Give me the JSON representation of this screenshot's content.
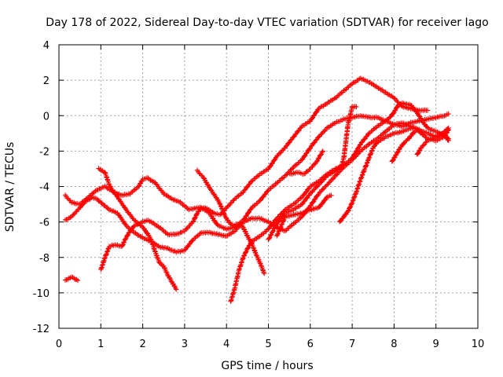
{
  "chart_data": {
    "type": "scatter",
    "title": "Day 178 of 2022, Sidereal Day-to-day VTEC variation (SDTVAR) for receiver Iago",
    "xlabel": "GPS time / hours",
    "ylabel": "SDTVAR / TECUs",
    "xlim": [
      0,
      10
    ],
    "ylim": [
      -12,
      4
    ],
    "x_ticks": [
      0,
      1,
      2,
      3,
      4,
      5,
      6,
      7,
      8,
      9,
      10
    ],
    "y_ticks": [
      -12,
      -10,
      -8,
      -6,
      -4,
      -2,
      0,
      2,
      4
    ],
    "grid": true,
    "marker": "+",
    "marker_color": "#ff0000",
    "series": [
      {
        "name": "s1",
        "points": [
          [
            0.15,
            -4.5
          ],
          [
            0.3,
            -4.9
          ],
          [
            0.5,
            -5.0
          ],
          [
            0.7,
            -4.6
          ],
          [
            0.9,
            -4.2
          ],
          [
            1.1,
            -4.0
          ],
          [
            1.3,
            -4.3
          ],
          [
            1.5,
            -4.5
          ],
          [
            1.7,
            -4.4
          ],
          [
            1.9,
            -4.0
          ],
          [
            2.0,
            -3.6
          ],
          [
            2.1,
            -3.5
          ],
          [
            2.3,
            -3.8
          ],
          [
            2.5,
            -4.4
          ],
          [
            2.7,
            -4.7
          ],
          [
            2.9,
            -4.9
          ],
          [
            3.1,
            -5.3
          ],
          [
            3.3,
            -5.2
          ],
          [
            3.5,
            -5.2
          ],
          [
            3.7,
            -5.5
          ],
          [
            3.85,
            -5.6
          ],
          [
            4.0,
            -5.2
          ],
          [
            4.2,
            -4.7
          ],
          [
            4.4,
            -4.3
          ],
          [
            4.6,
            -3.7
          ],
          [
            4.8,
            -3.3
          ],
          [
            5.0,
            -3.0
          ],
          [
            5.2,
            -2.3
          ],
          [
            5.4,
            -1.8
          ],
          [
            5.6,
            -1.2
          ],
          [
            5.8,
            -0.6
          ],
          [
            6.0,
            -0.3
          ],
          [
            6.2,
            0.4
          ],
          [
            6.4,
            0.7
          ],
          [
            6.6,
            1.0
          ],
          [
            6.8,
            1.4
          ],
          [
            7.0,
            1.8
          ],
          [
            7.2,
            2.1
          ],
          [
            7.4,
            1.9
          ],
          [
            7.6,
            1.6
          ],
          [
            7.8,
            1.3
          ],
          [
            8.0,
            1.0
          ],
          [
            8.2,
            0.5
          ],
          [
            8.4,
            0.4
          ],
          [
            8.6,
            0.3
          ],
          [
            8.8,
            0.3
          ]
        ]
      },
      {
        "name": "s2",
        "points": [
          [
            0.15,
            -5.9
          ],
          [
            0.3,
            -5.7
          ],
          [
            0.5,
            -5.2
          ],
          [
            0.6,
            -4.9
          ],
          [
            0.8,
            -4.6
          ],
          [
            0.9,
            -4.7
          ],
          [
            1.0,
            -4.9
          ],
          [
            1.1,
            -5.1
          ],
          [
            1.2,
            -5.3
          ],
          [
            1.4,
            -5.5
          ],
          [
            1.6,
            -6.2
          ],
          [
            1.8,
            -6.6
          ],
          [
            2.0,
            -6.9
          ],
          [
            2.2,
            -7.1
          ],
          [
            2.4,
            -7.4
          ],
          [
            2.6,
            -7.5
          ],
          [
            2.8,
            -7.7
          ],
          [
            3.0,
            -7.6
          ],
          [
            3.2,
            -7.0
          ],
          [
            3.4,
            -6.6
          ],
          [
            3.6,
            -6.6
          ],
          [
            3.8,
            -6.7
          ],
          [
            4.0,
            -6.8
          ],
          [
            4.2,
            -6.5
          ],
          [
            4.4,
            -6.0
          ],
          [
            4.6,
            -5.8
          ],
          [
            4.8,
            -5.8
          ],
          [
            5.0,
            -6.0
          ],
          [
            5.2,
            -6.3
          ],
          [
            5.4,
            -6.5
          ],
          [
            5.6,
            -6.1
          ],
          [
            5.8,
            -5.7
          ],
          [
            6.0,
            -5.1
          ],
          [
            6.2,
            -4.4
          ],
          [
            6.4,
            -3.9
          ],
          [
            6.6,
            -3.4
          ],
          [
            6.8,
            -2.9
          ],
          [
            7.0,
            -2.5
          ],
          [
            7.2,
            -2.0
          ],
          [
            7.4,
            -1.6
          ],
          [
            7.6,
            -1.3
          ],
          [
            7.8,
            -0.9
          ],
          [
            8.0,
            -0.5
          ],
          [
            8.2,
            -0.4
          ],
          [
            8.4,
            -0.6
          ],
          [
            8.6,
            -0.8
          ],
          [
            8.8,
            -1.0
          ],
          [
            9.0,
            -1.2
          ],
          [
            9.2,
            -1.1
          ],
          [
            9.3,
            -1.3
          ]
        ]
      },
      {
        "name": "s3",
        "points": [
          [
            0.95,
            -3.0
          ],
          [
            1.1,
            -3.2
          ],
          [
            1.2,
            -3.9
          ],
          [
            1.3,
            -4.3
          ],
          [
            1.4,
            -4.6
          ],
          [
            1.6,
            -5.3
          ],
          [
            1.8,
            -5.9
          ],
          [
            2.0,
            -6.3
          ],
          [
            2.1,
            -6.6
          ],
          [
            2.2,
            -7.0
          ],
          [
            2.3,
            -7.7
          ],
          [
            2.4,
            -8.3
          ],
          [
            2.5,
            -8.5
          ],
          [
            2.6,
            -9.0
          ],
          [
            2.7,
            -9.4
          ],
          [
            2.8,
            -9.8
          ]
        ]
      },
      {
        "name": "s4",
        "points": [
          [
            0.15,
            -9.3
          ],
          [
            0.3,
            -9.1
          ],
          [
            0.45,
            -9.3
          ]
        ]
      },
      {
        "name": "s5",
        "points": [
          [
            1.0,
            -8.7
          ],
          [
            1.1,
            -8.0
          ],
          [
            1.2,
            -7.4
          ],
          [
            1.3,
            -7.3
          ],
          [
            1.4,
            -7.3
          ],
          [
            1.5,
            -7.4
          ],
          [
            1.6,
            -6.9
          ],
          [
            1.7,
            -6.5
          ],
          [
            1.8,
            -6.2
          ],
          [
            1.9,
            -6.1
          ],
          [
            2.0,
            -6.0
          ],
          [
            2.1,
            -5.9
          ],
          [
            2.2,
            -6.0
          ],
          [
            2.4,
            -6.3
          ],
          [
            2.6,
            -6.7
          ],
          [
            2.8,
            -6.7
          ],
          [
            3.0,
            -6.5
          ],
          [
            3.2,
            -6.0
          ],
          [
            3.3,
            -5.5
          ],
          [
            3.4,
            -5.2
          ],
          [
            3.6,
            -5.5
          ],
          [
            3.7,
            -5.9
          ],
          [
            3.8,
            -6.2
          ],
          [
            4.0,
            -6.4
          ],
          [
            4.2,
            -6.3
          ],
          [
            4.4,
            -5.9
          ],
          [
            4.6,
            -5.2
          ],
          [
            4.8,
            -4.8
          ],
          [
            5.0,
            -4.2
          ],
          [
            5.2,
            -3.8
          ],
          [
            5.4,
            -3.4
          ],
          [
            5.6,
            -2.9
          ],
          [
            5.8,
            -2.5
          ],
          [
            6.0,
            -1.8
          ],
          [
            6.2,
            -1.2
          ],
          [
            6.4,
            -0.7
          ],
          [
            6.6,
            -0.4
          ],
          [
            6.8,
            -0.2
          ],
          [
            7.0,
            -0.1
          ],
          [
            7.2,
            0.0
          ],
          [
            7.4,
            -0.1
          ],
          [
            7.6,
            -0.1
          ],
          [
            7.8,
            -0.3
          ],
          [
            8.0,
            -0.5
          ],
          [
            8.2,
            -0.6
          ],
          [
            8.4,
            -0.4
          ],
          [
            8.6,
            -0.3
          ],
          [
            8.8,
            -0.2
          ],
          [
            9.0,
            -0.1
          ],
          [
            9.2,
            0.0
          ],
          [
            9.3,
            0.1
          ]
        ]
      },
      {
        "name": "s6",
        "points": [
          [
            3.3,
            -3.1
          ],
          [
            3.45,
            -3.5
          ],
          [
            3.6,
            -4.1
          ],
          [
            3.75,
            -4.6
          ],
          [
            3.85,
            -5.0
          ],
          [
            3.95,
            -5.6
          ],
          [
            4.05,
            -6.0
          ],
          [
            4.15,
            -6.2
          ],
          [
            4.3,
            -6.1
          ],
          [
            4.4,
            -6.3
          ],
          [
            4.5,
            -6.8
          ],
          [
            4.6,
            -7.2
          ],
          [
            4.7,
            -7.8
          ],
          [
            4.8,
            -8.3
          ],
          [
            4.9,
            -8.9
          ]
        ]
      },
      {
        "name": "s7",
        "points": [
          [
            4.1,
            -10.5
          ],
          [
            4.2,
            -9.7
          ],
          [
            4.3,
            -8.7
          ],
          [
            4.4,
            -8.0
          ],
          [
            4.5,
            -7.5
          ],
          [
            4.6,
            -7.1
          ],
          [
            4.8,
            -6.8
          ],
          [
            5.0,
            -6.4
          ],
          [
            5.2,
            -5.8
          ],
          [
            5.4,
            -5.3
          ],
          [
            5.6,
            -5.0
          ],
          [
            5.8,
            -4.6
          ],
          [
            6.0,
            -4.0
          ],
          [
            6.2,
            -3.7
          ],
          [
            6.4,
            -3.3
          ],
          [
            6.6,
            -3.0
          ],
          [
            6.8,
            -2.8
          ],
          [
            7.0,
            -2.4
          ],
          [
            7.2,
            -1.6
          ],
          [
            7.4,
            -1.0
          ],
          [
            7.6,
            -0.6
          ],
          [
            7.8,
            -0.3
          ],
          [
            7.9,
            -0.1
          ],
          [
            8.0,
            0.2
          ],
          [
            8.1,
            0.6
          ],
          [
            8.2,
            0.7
          ],
          [
            8.4,
            0.6
          ],
          [
            8.5,
            0.3
          ],
          [
            8.6,
            0.0
          ],
          [
            8.7,
            -0.4
          ],
          [
            8.8,
            -0.7
          ],
          [
            9.0,
            -0.9
          ],
          [
            9.2,
            -1.1
          ],
          [
            9.3,
            -1.4
          ]
        ]
      },
      {
        "name": "s8",
        "points": [
          [
            5.0,
            -7.0
          ],
          [
            5.2,
            -6.1
          ],
          [
            5.4,
            -5.5
          ],
          [
            5.6,
            -5.3
          ],
          [
            5.8,
            -5.0
          ],
          [
            6.0,
            -4.4
          ],
          [
            6.2,
            -3.9
          ],
          [
            6.4,
            -3.4
          ],
          [
            6.6,
            -3.1
          ],
          [
            6.75,
            -2.8
          ],
          [
            6.8,
            -2.4
          ],
          [
            6.9,
            -0.5
          ],
          [
            7.0,
            0.5
          ],
          [
            7.1,
            0.5
          ]
        ]
      },
      {
        "name": "s9",
        "points": [
          [
            5.2,
            -6.8
          ],
          [
            5.4,
            -5.7
          ],
          [
            5.6,
            -5.6
          ],
          [
            5.8,
            -5.5
          ],
          [
            6.0,
            -5.3
          ],
          [
            6.2,
            -5.2
          ],
          [
            6.3,
            -4.9
          ],
          [
            6.4,
            -4.6
          ],
          [
            6.5,
            -4.5
          ]
        ]
      },
      {
        "name": "s10",
        "points": [
          [
            6.7,
            -6.0
          ],
          [
            6.8,
            -5.7
          ],
          [
            6.9,
            -5.4
          ],
          [
            7.0,
            -4.9
          ],
          [
            7.1,
            -4.3
          ],
          [
            7.2,
            -3.6
          ],
          [
            7.3,
            -3.0
          ],
          [
            7.4,
            -2.4
          ],
          [
            7.5,
            -1.8
          ],
          [
            7.6,
            -1.5
          ],
          [
            7.8,
            -1.2
          ],
          [
            8.0,
            -1.0
          ],
          [
            8.2,
            -0.9
          ],
          [
            8.4,
            -0.7
          ],
          [
            8.5,
            -0.7
          ]
        ]
      },
      {
        "name": "s11",
        "points": [
          [
            7.95,
            -2.6
          ],
          [
            8.05,
            -2.2
          ],
          [
            8.15,
            -1.8
          ],
          [
            8.25,
            -1.5
          ],
          [
            8.35,
            -1.3
          ],
          [
            8.45,
            -1.0
          ],
          [
            8.55,
            -0.8
          ],
          [
            8.65,
            -1.0
          ],
          [
            8.8,
            -1.3
          ],
          [
            9.0,
            -1.4
          ],
          [
            9.2,
            -1.2
          ],
          [
            9.3,
            -0.8
          ]
        ]
      },
      {
        "name": "s12",
        "points": [
          [
            8.55,
            -2.2
          ],
          [
            8.65,
            -1.8
          ],
          [
            8.8,
            -1.4
          ],
          [
            9.0,
            -1.2
          ],
          [
            9.15,
            -1.0
          ],
          [
            9.3,
            -0.7
          ]
        ]
      },
      {
        "name": "s13",
        "points": [
          [
            5.5,
            -3.3
          ],
          [
            5.7,
            -3.2
          ],
          [
            5.85,
            -3.3
          ],
          [
            6.0,
            -3.0
          ],
          [
            6.15,
            -2.6
          ],
          [
            6.3,
            -2.0
          ]
        ]
      }
    ]
  }
}
